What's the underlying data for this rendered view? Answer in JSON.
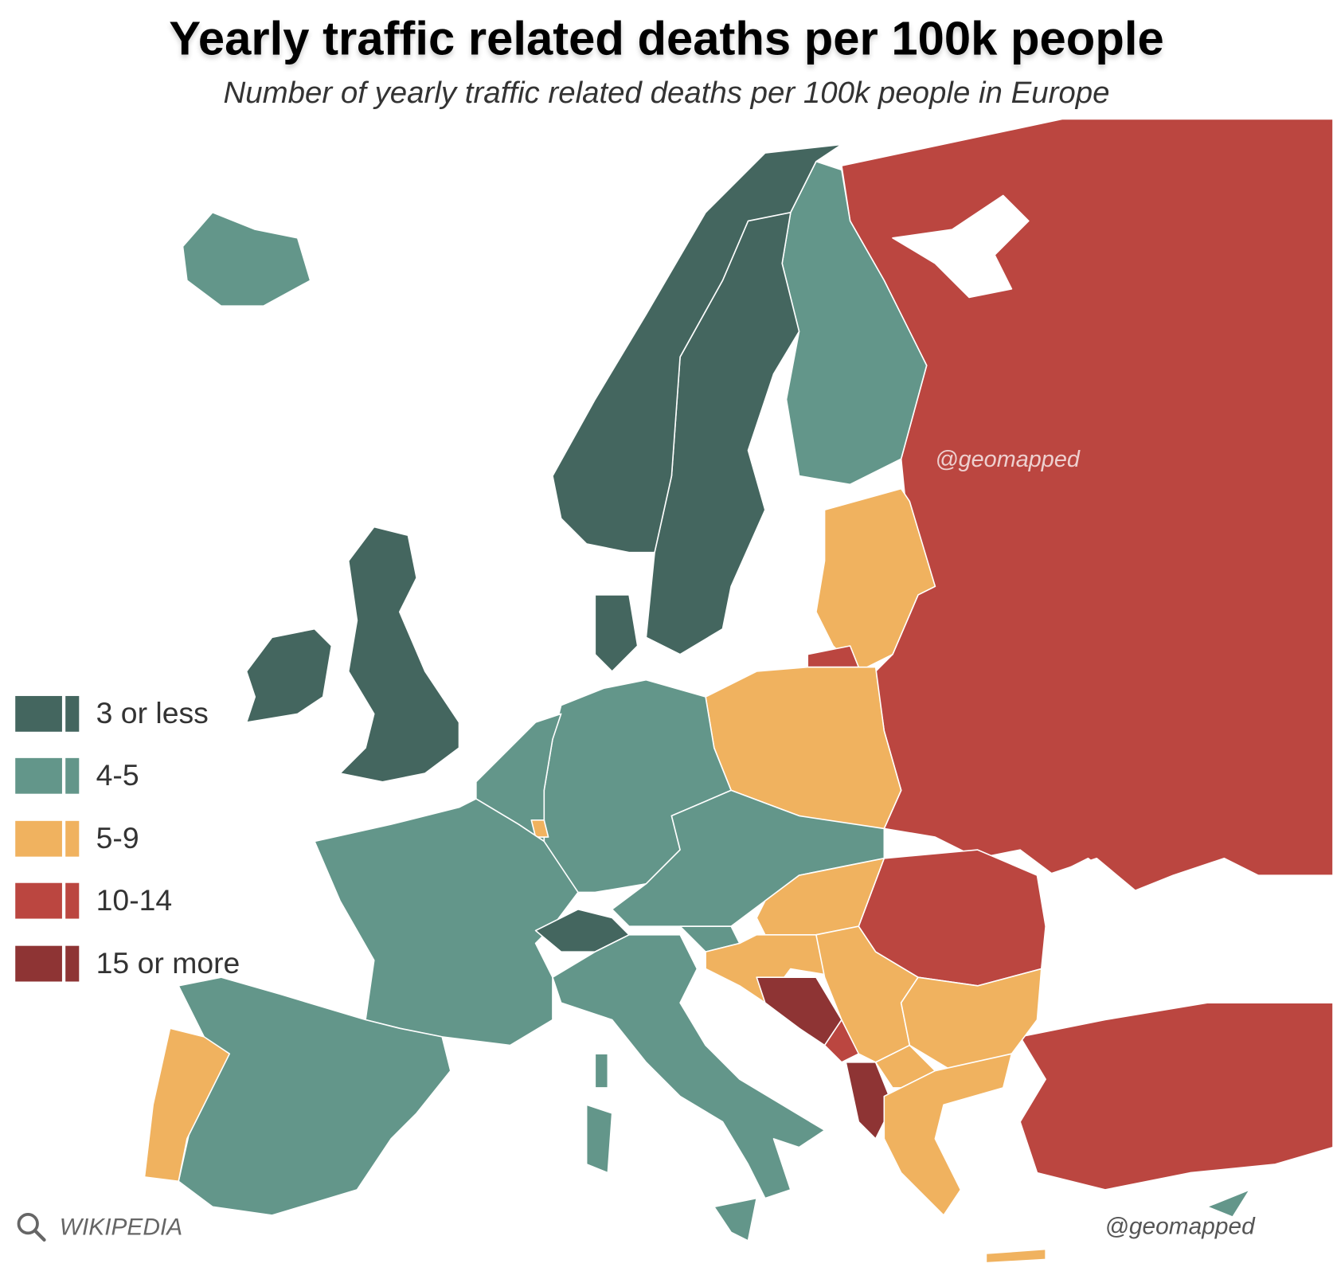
{
  "title": "Yearly traffic related deaths per 100k people",
  "subtitle": "Number of yearly traffic related deaths per 100k people in Europe",
  "legend": [
    {
      "label": "3 or less",
      "color": "#44665f"
    },
    {
      "label": "4-5",
      "color": "#63968a"
    },
    {
      "label": "5-9",
      "color": "#f0b25f"
    },
    {
      "label": "10-14",
      "color": "#bb4640"
    },
    {
      "label": "15 or more",
      "color": "#8e3434"
    }
  ],
  "map_data": {
    "russia-belarus-ukraine": 3,
    "romania-moldova": 3,
    "turkey": 3,
    "kaliningrad": 3,
    "montenegro": 3,
    "finland": 1,
    "iceland": 1,
    "germany": 1,
    "benelux": 1,
    "france": 1,
    "central-europe": 1,
    "slovenia": 1,
    "italy": 1,
    "sicily": 1,
    "sardinia": 1,
    "corsica": 1,
    "spain": 1,
    "cyprus": 1,
    "sweden": 0,
    "norway": 0,
    "uk": 0,
    "ireland": 0,
    "denmark": 0,
    "switzerland": 0,
    "baltics": 2,
    "poland": 2,
    "luxembourg": 2,
    "hungary": 2,
    "croatia": 2,
    "serbia": 2,
    "bulgaria": 2,
    "north-macedonia": 2,
    "greece": 2,
    "crete": 2,
    "portugal": 2,
    "bosnia": 4,
    "albania": 4
  },
  "watermark": "@geomapped",
  "credit": "@geomapped",
  "source": "WIKIPEDIA",
  "source_icon": "search-icon"
}
